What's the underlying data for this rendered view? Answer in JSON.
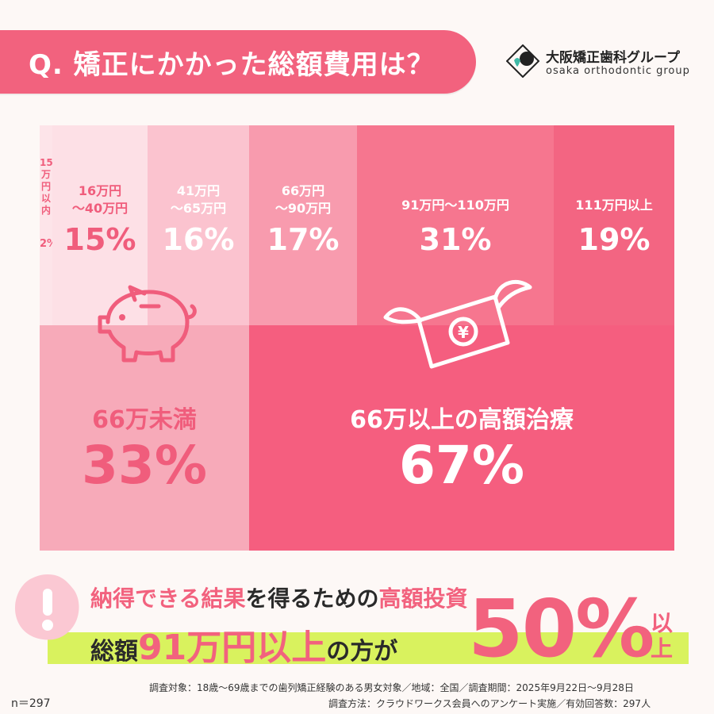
{
  "header": {
    "question": "Q.  矯正にかかった総額費用は？"
  },
  "logo": {
    "name": "大阪矯正歯科グループ",
    "name_en": "osaka orthodontic group"
  },
  "chart_data": {
    "type": "treemap",
    "groups": [
      {
        "label": "66万未満",
        "value": 33,
        "value_label": "33%",
        "color": "#f7aab9",
        "categories": [
          {
            "label_lines": [
              "15",
              "万",
              "円",
              "以",
              "内"
            ],
            "value": 2,
            "value_label": "2%",
            "color": "#fde4e9"
          },
          {
            "label_lines": [
              "16万円",
              "～40万円"
            ],
            "value": 15,
            "value_label": "15%",
            "color": "#fde0e6"
          },
          {
            "label_lines": [
              "41万円",
              "～65万円"
            ],
            "value": 16,
            "value_label": "16%",
            "color": "#fbc3cf"
          }
        ]
      },
      {
        "label": "66万以上の高額治療",
        "value": 67,
        "value_label": "67%",
        "color": "#f55e7f",
        "categories": [
          {
            "label_lines": [
              "66万円",
              "～90万円"
            ],
            "value": 17,
            "value_label": "17%",
            "color": "#f89bae"
          },
          {
            "label_lines": [
              "91万円～110万円"
            ],
            "value": 31,
            "value_label": "31%",
            "color": "#f6768f"
          },
          {
            "label_lines": [
              "111万円以上"
            ],
            "value": 19,
            "value_label": "19%",
            "color": "#f36582"
          }
        ]
      }
    ]
  },
  "bottom": {
    "line1_a": "納得できる結果",
    "line1_b": "を得るための",
    "line1_c": "高額投資",
    "line2_a": "総額",
    "line2_b": "91万円以上",
    "line2_c": "の方が",
    "big_value": "50%",
    "ijou_1": "以",
    "ijou_2": "上"
  },
  "footer": {
    "line1": "調査対象：18歳～69歳までの歯列矯正経験のある男女対象／地域：全国／調査期間：2025年9月22日～9月28日",
    "line2": "調査方法：クラウドワークス会員へのアンケート実施／有効回答数：297人",
    "n": "n＝297"
  },
  "colors": {
    "accent": "#f2627e",
    "green_band": "#d9f25e"
  },
  "icons": [
    "piggy-bank-icon",
    "flying-money-icon",
    "exclamation-icon",
    "tooth-logo-icon"
  ]
}
